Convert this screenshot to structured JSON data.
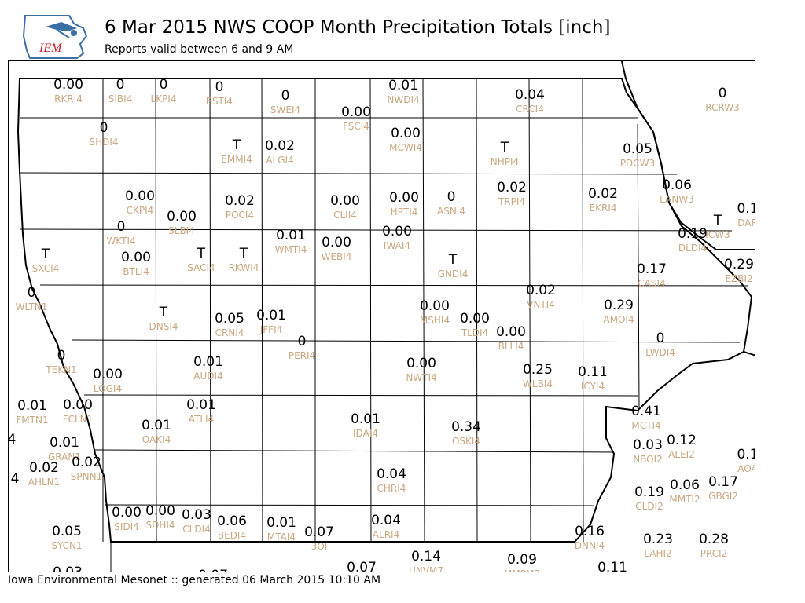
{
  "header": {
    "title": "6 Mar 2015 NWS COOP Month Precipitation Totals [inch]",
    "subtitle": "Reports valid between 6 and 9 AM",
    "logo_text": "IEM"
  },
  "footer": {
    "text": "Iowa Environmental Mesonet :: generated 06 March 2015 10:10 AM"
  },
  "colors": {
    "value": "#000000",
    "station_id": "#c8a882",
    "boundary": "#000000",
    "logo_blue": "#3a6ea5",
    "logo_red": "#d0202a"
  },
  "stations": [
    {
      "id": "RKRI4",
      "value": "0.00"
    },
    {
      "id": "SIBI4",
      "value": "0"
    },
    {
      "id": "LKPI4",
      "value": "0"
    },
    {
      "id": "BSTI4",
      "value": "0"
    },
    {
      "id": "SWEI4",
      "value": "0"
    },
    {
      "id": "NWDI4",
      "value": "0.01"
    },
    {
      "id": "FSCI4",
      "value": "0.00"
    },
    {
      "id": "CRCI4",
      "value": "0.04"
    },
    {
      "id": "RCRW3",
      "value": "0"
    },
    {
      "id": "SHDI4",
      "value": "0"
    },
    {
      "id": "MCWI4",
      "value": "0.00"
    },
    {
      "id": "EMMI4",
      "value": "T"
    },
    {
      "id": "ALGI4",
      "value": "0.02"
    },
    {
      "id": "NHPI4",
      "value": "T"
    },
    {
      "id": "PDCW3",
      "value": "0.05"
    },
    {
      "id": "CKPI4",
      "value": "0.00"
    },
    {
      "id": "POCI4",
      "value": "0.02"
    },
    {
      "id": "CLII4",
      "value": "0.00"
    },
    {
      "id": "HPTI4",
      "value": "0.00"
    },
    {
      "id": "ASNI4",
      "value": "0"
    },
    {
      "id": "TRPI4",
      "value": "0.02"
    },
    {
      "id": "EKRI4",
      "value": "0.02"
    },
    {
      "id": "LANW3",
      "value": "0.06"
    },
    {
      "id": "SLBI4",
      "value": "0.00"
    },
    {
      "id": "WKTI4",
      "value": "0"
    },
    {
      "id": "WMTI4",
      "value": "0.01"
    },
    {
      "id": "WEBI4",
      "value": "0.00"
    },
    {
      "id": "IWAI4",
      "value": "0.00"
    },
    {
      "id": "DLDI4",
      "value": "0.19"
    },
    {
      "id": "SXCI4",
      "value": "T"
    },
    {
      "id": "BTLI4",
      "value": "0.00"
    },
    {
      "id": "SACI4",
      "value": "T"
    },
    {
      "id": "RKWI4",
      "value": "T"
    },
    {
      "id": "GNDI4",
      "value": "T"
    },
    {
      "id": "CASI4",
      "value": "0.17"
    },
    {
      "id": "EZBI2",
      "value": "0.29"
    },
    {
      "id": "WLTN1",
      "value": "0"
    },
    {
      "id": "VNTI4",
      "value": "0.02"
    },
    {
      "id": "AMOI4",
      "value": "0.29"
    },
    {
      "id": "DNSI4",
      "value": "T"
    },
    {
      "id": "CRNI4",
      "value": "0.05"
    },
    {
      "id": "JFFI4",
      "value": "0.01"
    },
    {
      "id": "MSHI4",
      "value": "0.00"
    },
    {
      "id": "TLDI4",
      "value": "0.00"
    },
    {
      "id": "BLLI4",
      "value": "0.00"
    },
    {
      "id": "PERI4",
      "value": "0"
    },
    {
      "id": "LWDI4",
      "value": "0"
    },
    {
      "id": "TEKN1",
      "value": "0"
    },
    {
      "id": "AUDI4",
      "value": "0.01"
    },
    {
      "id": "NWTI4",
      "value": "0.00"
    },
    {
      "id": "WLBI4",
      "value": "0.25"
    },
    {
      "id": "ICYI4",
      "value": "0.11"
    },
    {
      "id": "LOGI4",
      "value": "0.00"
    },
    {
      "id": "FMTN1",
      "value": "0.01"
    },
    {
      "id": "FCLN1",
      "value": "0.00"
    },
    {
      "id": "ATLI4",
      "value": "0.01"
    },
    {
      "id": "OAKI4",
      "value": "0.01"
    },
    {
      "id": "IDAI4",
      "value": "0.01"
    },
    {
      "id": "OSKI4",
      "value": "0.34"
    },
    {
      "id": "MCTI4",
      "value": "0.41"
    },
    {
      "id": "GRAN1",
      "value": "0.01"
    },
    {
      "id": "AHLN1",
      "value": "0.02"
    },
    {
      "id": "SPNN1",
      "value": "0.02"
    },
    {
      "id": "NBOI2",
      "value": "0.03"
    },
    {
      "id": "ALEI2",
      "value": "0.12"
    },
    {
      "id": "CHRI4",
      "value": "0.04"
    },
    {
      "id": "MMTI2",
      "value": "0.06"
    },
    {
      "id": "GBGI2",
      "value": "0.17"
    },
    {
      "id": "SIDI4",
      "value": "0.00"
    },
    {
      "id": "SDHI4",
      "value": "0.00"
    },
    {
      "id": "CLDI4",
      "value": "0.03"
    },
    {
      "id": "BEDI4",
      "value": "0.06"
    },
    {
      "id": "MTAI4",
      "value": "0.01"
    },
    {
      "id": "3OI",
      "value": "0.07"
    },
    {
      "id": "ALRI4",
      "value": "0.04"
    },
    {
      "id": "CLDI2",
      "value": "0.19"
    },
    {
      "id": "SYCN1",
      "value": "0.05"
    },
    {
      "id": "DNNI4",
      "value": "0.16"
    },
    {
      "id": "LAHI2",
      "value": "0.23"
    },
    {
      "id": "PRCI2",
      "value": "0.28"
    },
    {
      "id": "UNVM7",
      "value": "0.14"
    },
    {
      "id": "MMPM7",
      "value": "0.09"
    },
    {
      "id": "",
      "value": "0.11"
    },
    {
      "id": "",
      "value": "0.07"
    },
    {
      "id": "",
      "value": "0.07"
    },
    {
      "id": "",
      "value": "0.03"
    },
    {
      "id": "DAR",
      "value": "0.1"
    },
    {
      "id": "ICW3",
      "value": "T"
    },
    {
      "id": "AOA",
      "value": "0.1"
    },
    {
      "id": "",
      "value": "4"
    },
    {
      "id": "",
      "value": "4"
    },
    {
      "id": "",
      "value": "0"
    },
    {
      "id": "",
      "value": "0"
    }
  ]
}
